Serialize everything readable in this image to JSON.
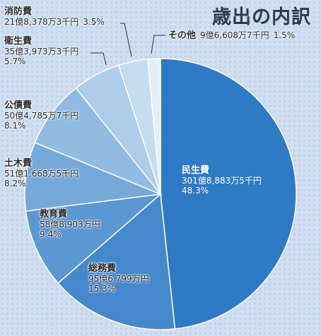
{
  "title": "歳出の内訳",
  "chart_data": {
    "type": "pie",
    "title": "歳出の内訳",
    "unit": "千円",
    "categories": [
      "民生費",
      "総務費",
      "教育費",
      "土木費",
      "公債費",
      "衛生費",
      "消防費",
      "その他"
    ],
    "slices": [
      {
        "name": "民生費",
        "amount": "301億8,883万5千円",
        "percent": "48.3%",
        "value": 48.3,
        "color": "#2f7ac4"
      },
      {
        "name": "総務費",
        "amount": "95億6,799万円",
        "percent": "15.3%",
        "value": 15.3,
        "color": "#4589cc"
      },
      {
        "name": "教育費",
        "amount": "58億8,903万円",
        "percent": "9.4%",
        "value": 9.4,
        "color": "#5b97d3"
      },
      {
        "name": "土木費",
        "amount": "51億1,668万5千円",
        "percent": "8.2%",
        "value": 8.2,
        "color": "#76a8da"
      },
      {
        "name": "公債費",
        "amount": "50億4,785万7千円",
        "percent": "8.1%",
        "value": 8.1,
        "color": "#92bbe3"
      },
      {
        "name": "衛生費",
        "amount": "35億3,973万3千円",
        "percent": "5.7%",
        "value": 5.7,
        "color": "#adcdeb"
      },
      {
        "name": "消防費",
        "amount": "21億8,378万3千円",
        "percent": "3.5%",
        "value": 3.5,
        "color": "#c6dcf1"
      },
      {
        "name": "その他",
        "amount": "9億6,608万7千円",
        "percent": "1.5%",
        "value": 1.5,
        "color": "#e4eef9"
      }
    ]
  }
}
